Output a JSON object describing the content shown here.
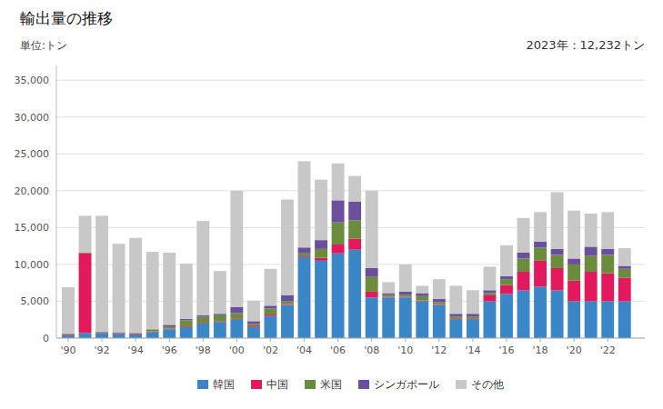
{
  "chart_data": {
    "type": "bar",
    "stacked": true,
    "title": "輸出量の推移",
    "ylabel": "単位:トン",
    "annotations": [
      "2023年：12,232トン"
    ],
    "x": [
      1990,
      1991,
      1992,
      1993,
      1994,
      1995,
      1996,
      1997,
      1998,
      1999,
      2000,
      2001,
      2002,
      2003,
      2004,
      2005,
      2006,
      2007,
      2008,
      2009,
      2010,
      2011,
      2012,
      2013,
      2014,
      2015,
      2016,
      2017,
      2018,
      2019,
      2020,
      2021,
      2022,
      2023
    ],
    "series": [
      {
        "name": "韓国",
        "color": "#3b86c6",
        "values": [
          400,
          700,
          700,
          600,
          500,
          800,
          1200,
          1500,
          2000,
          2200,
          2500,
          1500,
          3000,
          4500,
          11000,
          10500,
          11500,
          12000,
          5500,
          5500,
          5500,
          5000,
          4500,
          2500,
          2500,
          5000,
          6000,
          6500,
          7000,
          6500,
          5000,
          5000,
          5000,
          5000
        ]
      },
      {
        "name": "中国",
        "color": "#e2195c",
        "values": [
          100,
          10800,
          100,
          100,
          100,
          100,
          100,
          100,
          100,
          100,
          100,
          100,
          200,
          100,
          100,
          400,
          1200,
          1500,
          800,
          100,
          100,
          100,
          100,
          100,
          100,
          800,
          1200,
          2500,
          3500,
          3000,
          2800,
          4000,
          3800,
          3200
        ]
      },
      {
        "name": "米国",
        "color": "#6a8c3c",
        "values": [
          100,
          100,
          100,
          100,
          100,
          300,
          300,
          800,
          800,
          800,
          800,
          300,
          800,
          400,
          400,
          1200,
          3000,
          2500,
          2000,
          300,
          300,
          600,
          300,
          300,
          300,
          300,
          800,
          1800,
          1800,
          1800,
          2200,
          2200,
          2500,
          1200
        ]
      },
      {
        "name": "シンガポール",
        "color": "#6b4f9e",
        "values": [
          0,
          0,
          0,
          0,
          0,
          0,
          200,
          200,
          200,
          200,
          800,
          400,
          400,
          800,
          800,
          1200,
          3000,
          2500,
          1200,
          200,
          400,
          400,
          400,
          400,
          400,
          400,
          400,
          800,
          800,
          800,
          800,
          1200,
          800,
          400
        ]
      },
      {
        "name": "その他",
        "color": "#c8c8c8",
        "values": [
          6300,
          5000,
          15700,
          12000,
          12900,
          10500,
          9800,
          7500,
          12800,
          5800,
          15800,
          2800,
          5000,
          13000,
          11700,
          8200,
          5000,
          3500,
          10500,
          1500,
          3700,
          1000,
          2700,
          3800,
          3200,
          3200,
          4200,
          4700,
          4000,
          7700,
          6500,
          4500,
          5000,
          2400
        ]
      }
    ],
    "xlim": [
      1989.3,
      2024.2
    ],
    "xticks": [
      {
        "value": 1990,
        "label": "'90"
      },
      {
        "value": 1992,
        "label": "'92"
      },
      {
        "value": 1994,
        "label": "'94"
      },
      {
        "value": 1996,
        "label": "'96"
      },
      {
        "value": 1998,
        "label": "'98"
      },
      {
        "value": 2000,
        "label": "'00"
      },
      {
        "value": 2002,
        "label": "'02"
      },
      {
        "value": 2004,
        "label": "'04"
      },
      {
        "value": 2006,
        "label": "'06"
      },
      {
        "value": 2008,
        "label": "'08"
      },
      {
        "value": 2010,
        "label": "'10"
      },
      {
        "value": 2012,
        "label": "'12"
      },
      {
        "value": 2014,
        "label": "'14"
      },
      {
        "value": 2016,
        "label": "'16"
      },
      {
        "value": 2018,
        "label": "'18"
      },
      {
        "value": 2020,
        "label": "'20"
      },
      {
        "value": 2022,
        "label": "'22"
      }
    ],
    "ylim": [
      0,
      37000
    ],
    "yticks": [
      0,
      {
        "value": 5000,
        "label": "5,000"
      },
      {
        "value": 10000,
        "label": "10,000"
      },
      {
        "value": 15000,
        "label": "15,000"
      },
      {
        "value": 20000,
        "label": "20,000"
      },
      {
        "value": 25000,
        "label": "25,000"
      },
      {
        "value": 30000,
        "label": "30,000"
      },
      {
        "value": 35000,
        "label": "35,000"
      }
    ],
    "grid": true,
    "legend": "bottom"
  }
}
